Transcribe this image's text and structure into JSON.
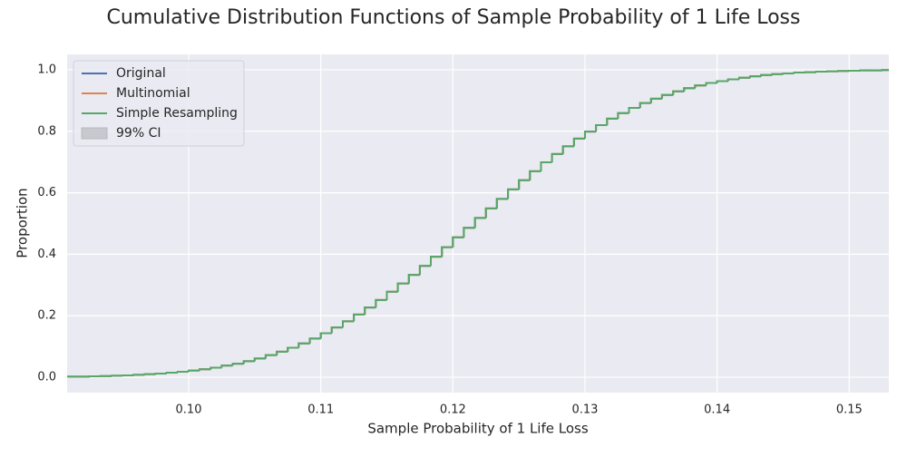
{
  "chart_data": {
    "type": "step",
    "title": "Cumulative Distribution Functions of Sample Probability of 1 Life Loss",
    "x_label": "Sample Probability of 1 Life Loss",
    "y_label": "Proportion",
    "xlim": [
      0.0908,
      0.153
    ],
    "ylim": [
      -0.05,
      1.05
    ],
    "xticks": [
      {
        "value": 0.1,
        "label": "0.10"
      },
      {
        "value": 0.11,
        "label": "0.11"
      },
      {
        "value": 0.12,
        "label": "0.12"
      },
      {
        "value": 0.13,
        "label": "0.13"
      },
      {
        "value": 0.14,
        "label": "0.14"
      },
      {
        "value": 0.15,
        "label": "0.15"
      }
    ],
    "yticks": [
      {
        "value": 0,
        "label": "0.0"
      },
      {
        "value": 0.2,
        "label": "0.2"
      },
      {
        "value": 0.4,
        "label": "0.4"
      },
      {
        "value": 0.6,
        "label": "0.6"
      },
      {
        "value": 0.8,
        "label": "0.8"
      },
      {
        "value": 1,
        "label": "1.0"
      }
    ],
    "grid": true,
    "legend": "upper left",
    "x": [
      0.09083,
      0.09167,
      0.0925,
      0.09333,
      0.09417,
      0.095,
      0.09583,
      0.09667,
      0.0975,
      0.09833,
      0.09917,
      0.1,
      0.10083,
      0.10167,
      0.1025,
      0.10333,
      0.10417,
      0.105,
      0.10583,
      0.10667,
      0.1075,
      0.10833,
      0.10917,
      0.11,
      0.11083,
      0.11167,
      0.1125,
      0.11333,
      0.11417,
      0.115,
      0.11583,
      0.11667,
      0.1175,
      0.11833,
      0.11917,
      0.12,
      0.12083,
      0.12167,
      0.1225,
      0.12333,
      0.12417,
      0.125,
      0.12583,
      0.12667,
      0.1275,
      0.12833,
      0.12917,
      0.13,
      0.13083,
      0.13167,
      0.1325,
      0.13333,
      0.13417,
      0.135,
      0.13583,
      0.13667,
      0.1375,
      0.13833,
      0.13917,
      0.14,
      0.14083,
      0.14167,
      0.1425,
      0.14333,
      0.14417,
      0.145,
      0.14583,
      0.14667,
      0.1475,
      0.14833,
      0.14917,
      0.15,
      0.15083,
      0.15167,
      0.1525
    ],
    "series": [
      {
        "name": "Original",
        "color": "#4c72b0",
        "values": [
          0.002,
          0.002,
          0.003,
          0.004,
          0.005,
          0.006,
          0.008,
          0.01,
          0.012,
          0.015,
          0.018,
          0.022,
          0.026,
          0.031,
          0.038,
          0.044,
          0.052,
          0.061,
          0.072,
          0.083,
          0.096,
          0.11,
          0.126,
          0.143,
          0.162,
          0.182,
          0.204,
          0.227,
          0.251,
          0.278,
          0.305,
          0.333,
          0.362,
          0.392,
          0.423,
          0.455,
          0.486,
          0.518,
          0.549,
          0.58,
          0.611,
          0.641,
          0.67,
          0.699,
          0.726,
          0.751,
          0.776,
          0.799,
          0.82,
          0.841,
          0.859,
          0.876,
          0.892,
          0.906,
          0.918,
          0.93,
          0.94,
          0.949,
          0.957,
          0.963,
          0.969,
          0.974,
          0.979,
          0.983,
          0.986,
          0.988,
          0.991,
          0.992,
          0.994,
          0.995,
          0.996,
          0.997,
          0.998,
          0.998,
          0.999
        ]
      },
      {
        "name": "Multinomial",
        "color": "#dd8452",
        "values": [
          0.002,
          0.002,
          0.003,
          0.004,
          0.005,
          0.006,
          0.008,
          0.01,
          0.012,
          0.015,
          0.018,
          0.022,
          0.026,
          0.031,
          0.038,
          0.044,
          0.052,
          0.061,
          0.072,
          0.083,
          0.096,
          0.11,
          0.126,
          0.143,
          0.162,
          0.182,
          0.204,
          0.227,
          0.251,
          0.278,
          0.305,
          0.333,
          0.362,
          0.392,
          0.423,
          0.455,
          0.486,
          0.518,
          0.549,
          0.58,
          0.611,
          0.641,
          0.67,
          0.699,
          0.726,
          0.751,
          0.776,
          0.799,
          0.82,
          0.841,
          0.859,
          0.876,
          0.892,
          0.906,
          0.918,
          0.93,
          0.94,
          0.949,
          0.957,
          0.963,
          0.969,
          0.974,
          0.979,
          0.983,
          0.986,
          0.988,
          0.991,
          0.992,
          0.994,
          0.995,
          0.996,
          0.997,
          0.998,
          0.998,
          0.999
        ]
      },
      {
        "name": "Simple Resampling",
        "color": "#55a868",
        "values": [
          0.002,
          0.002,
          0.003,
          0.004,
          0.005,
          0.006,
          0.008,
          0.01,
          0.012,
          0.015,
          0.018,
          0.022,
          0.026,
          0.031,
          0.038,
          0.044,
          0.052,
          0.061,
          0.072,
          0.083,
          0.096,
          0.11,
          0.126,
          0.143,
          0.162,
          0.182,
          0.204,
          0.227,
          0.251,
          0.278,
          0.305,
          0.333,
          0.362,
          0.392,
          0.423,
          0.455,
          0.486,
          0.518,
          0.549,
          0.58,
          0.611,
          0.641,
          0.67,
          0.699,
          0.726,
          0.751,
          0.776,
          0.799,
          0.82,
          0.841,
          0.859,
          0.876,
          0.892,
          0.906,
          0.918,
          0.93,
          0.94,
          0.949,
          0.957,
          0.963,
          0.969,
          0.974,
          0.979,
          0.983,
          0.986,
          0.988,
          0.991,
          0.992,
          0.994,
          0.995,
          0.996,
          0.997,
          0.998,
          0.998,
          0.999
        ]
      }
    ],
    "band": {
      "name": "99% CI",
      "color": "#c8c9ce"
    }
  }
}
